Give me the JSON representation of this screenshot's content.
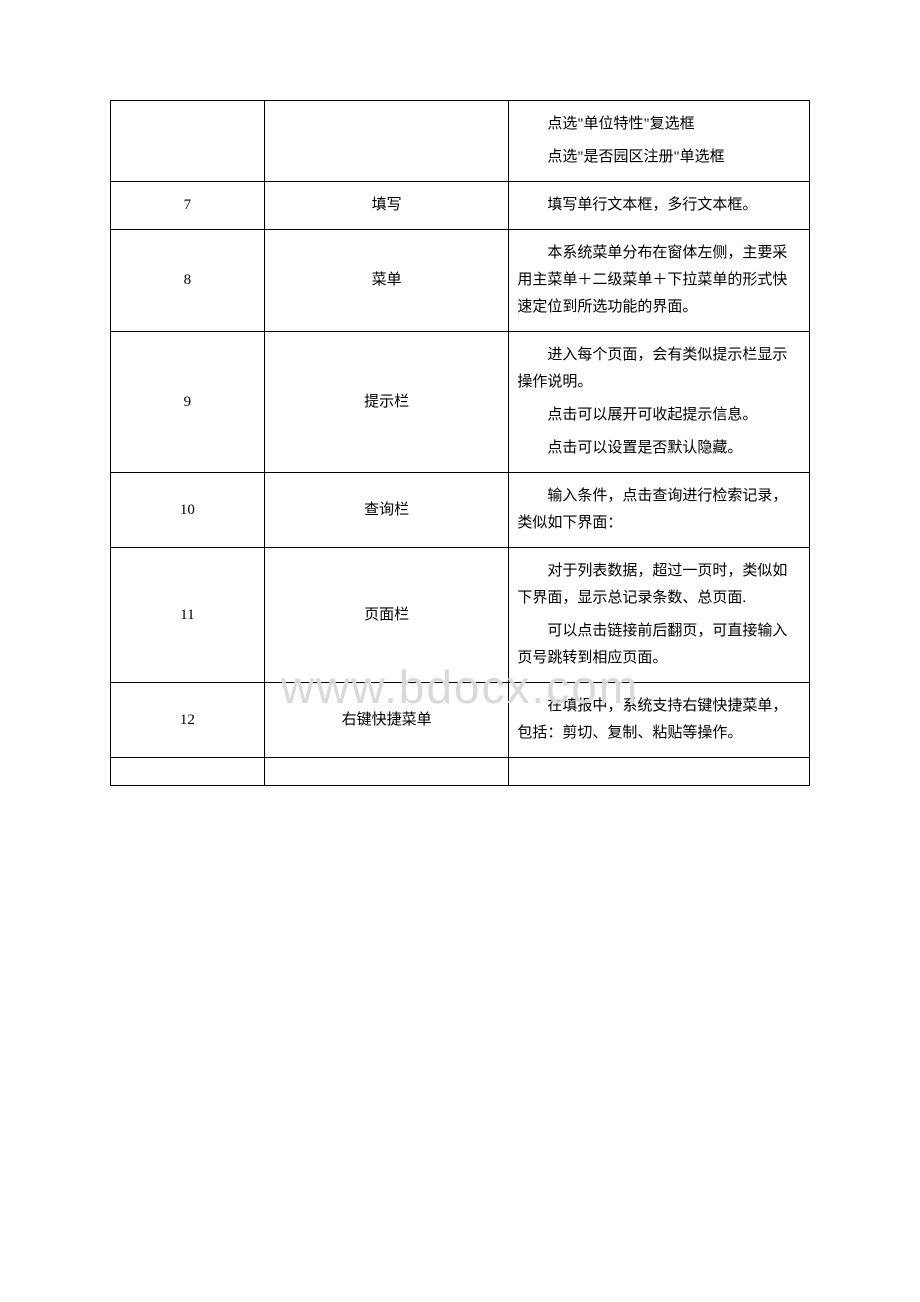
{
  "watermark": "www.bdocx.com",
  "table": {
    "col_widths": [
      "22%",
      "35%",
      "43%"
    ],
    "border_color": "#000000",
    "background_color": "#ffffff",
    "text_color": "#000000",
    "watermark_color": "#d9d9d9",
    "font_size": 15,
    "rows": [
      {
        "num": "",
        "term": "",
        "desc": [
          "点选\"单位特性\"复选框",
          "点选\"是否园区注册\"单选框"
        ]
      },
      {
        "num": "7",
        "term": "填写",
        "desc": [
          "填写单行文本框，多行文本框。"
        ]
      },
      {
        "num": "8",
        "term": "菜单",
        "desc": [
          "本系统菜单分布在窗体左侧，主要采用主菜单＋二级菜单＋下拉菜单的形式快速定位到所选功能的界面。"
        ]
      },
      {
        "num": "9",
        "term": "提示栏",
        "desc": [
          "进入每个页面，会有类似提示栏显示操作说明。",
          "点击可以展开可收起提示信息。",
          "点击可以设置是否默认隐藏。"
        ]
      },
      {
        "num": "10",
        "term": "查询栏",
        "desc": [
          "输入条件，点击查询进行检索记录，类似如下界面："
        ]
      },
      {
        "num": "11",
        "term": "页面栏",
        "desc": [
          "对于列表数据，超过一页时，类似如下界面，显示总记录条数、总页面.",
          "可以点击链接前后翻页，可直接输入页号跳转到相应页面。"
        ]
      },
      {
        "num": "12",
        "term": "右键快捷菜单",
        "desc": [
          "在填报中，系统支持右键快捷菜单，包括：剪切、复制、粘贴等操作。"
        ]
      }
    ]
  }
}
